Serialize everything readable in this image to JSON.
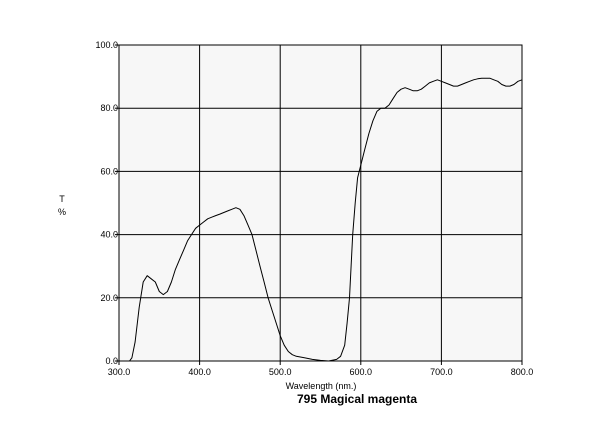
{
  "chart_data": {
    "type": "line",
    "title": "795 Magical magenta",
    "xlabel": "Wavelength (nm.)",
    "ylabel_lines": [
      "T",
      "%"
    ],
    "xlim": [
      300,
      800
    ],
    "ylim": [
      0,
      100
    ],
    "x_ticks": [
      300,
      400,
      500,
      600,
      700,
      800
    ],
    "x_tick_labels": [
      "300.0",
      "400.0",
      "500.0",
      "600.0",
      "700.0",
      "800.0"
    ],
    "y_ticks": [
      0,
      20,
      40,
      60,
      80,
      100
    ],
    "y_tick_labels": [
      "0.0",
      "20.0",
      "40.0",
      "60.0",
      "80.0",
      "100.0"
    ],
    "grid": true,
    "series": [
      {
        "color": "#000000",
        "x": [
          313,
          316,
          320,
          325,
          330,
          335,
          340,
          345,
          350,
          355,
          360,
          365,
          370,
          375,
          380,
          385,
          390,
          395,
          400,
          405,
          410,
          415,
          420,
          425,
          430,
          435,
          440,
          445,
          450,
          455,
          460,
          465,
          470,
          475,
          480,
          485,
          490,
          495,
          500,
          505,
          510,
          515,
          520,
          530,
          540,
          550,
          560,
          570,
          575,
          580,
          583,
          586,
          588,
          590,
          593,
          596,
          600,
          605,
          610,
          615,
          620,
          625,
          630,
          635,
          640,
          645,
          650,
          655,
          660,
          665,
          670,
          675,
          680,
          685,
          690,
          695,
          700,
          705,
          710,
          715,
          720,
          725,
          730,
          735,
          740,
          745,
          750,
          755,
          760,
          765,
          770,
          775,
          780,
          785,
          790,
          795,
          800
        ],
        "y": [
          0,
          1,
          6,
          17,
          25,
          27,
          26,
          25,
          22,
          21,
          22,
          25,
          29,
          32,
          35,
          38,
          40,
          42,
          43,
          44,
          45,
          45.5,
          46,
          46.5,
          47,
          47.5,
          48,
          48.5,
          48,
          46,
          43,
          40,
          35,
          30,
          25,
          20,
          16,
          12,
          8,
          5,
          3,
          2,
          1.5,
          1,
          0.5,
          0.2,
          0,
          0.5,
          1.5,
          5,
          12,
          20,
          30,
          40,
          50,
          58,
          62,
          67,
          72,
          76,
          79,
          80,
          80,
          81,
          83,
          85,
          86,
          86.5,
          86,
          85.5,
          85.5,
          86,
          87,
          88,
          88.5,
          89,
          88.5,
          88,
          87.5,
          87,
          87,
          87.5,
          88,
          88.5,
          89,
          89.3,
          89.5,
          89.5,
          89.5,
          89,
          88.5,
          87.5,
          87,
          87,
          87.5,
          88.5,
          89
        ]
      }
    ]
  }
}
